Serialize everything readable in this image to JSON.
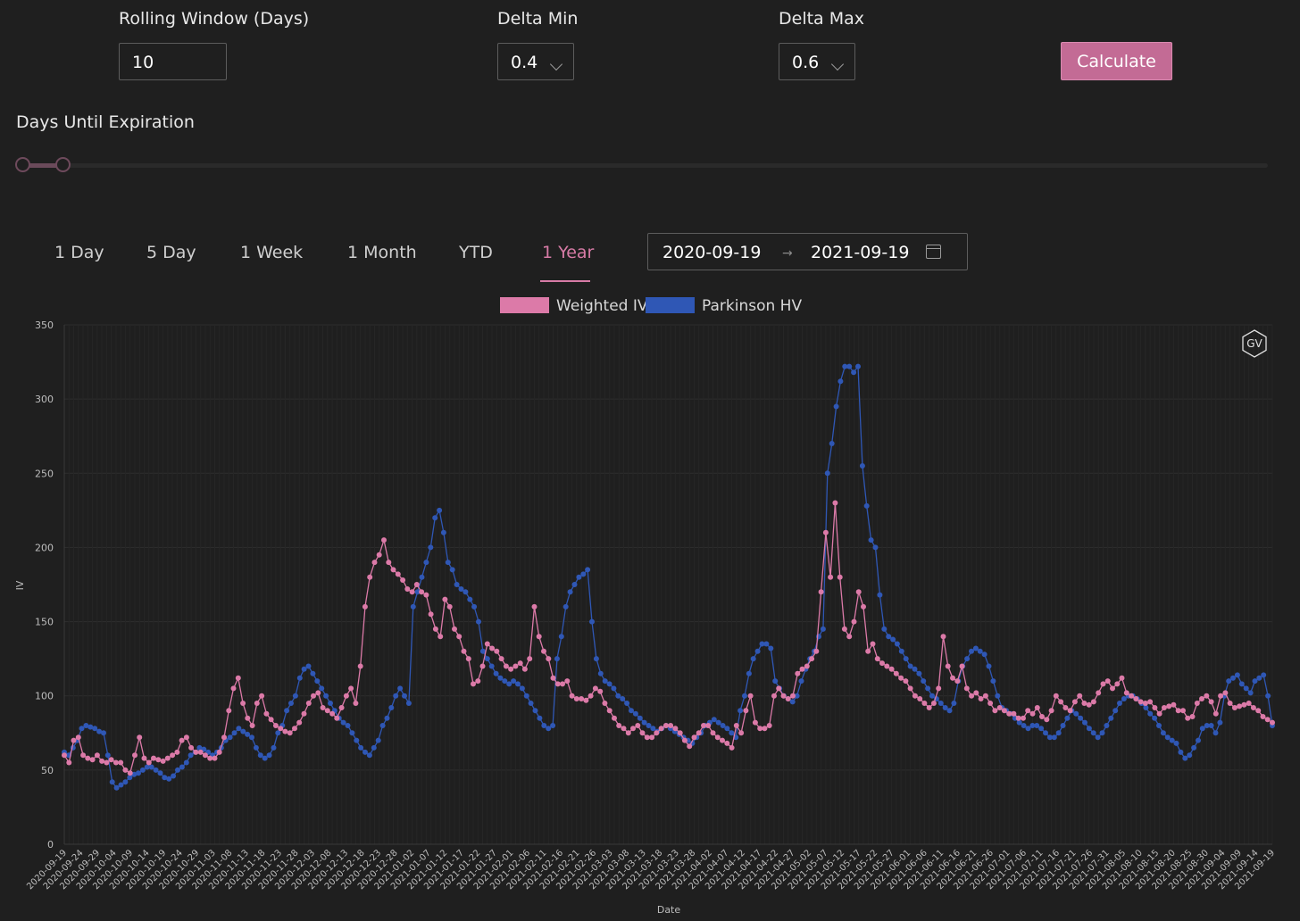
{
  "controls": {
    "rolling_label": "Rolling Window (Days)",
    "rolling_value": "10",
    "delta_min_label": "Delta Min",
    "delta_min_value": "0.4",
    "delta_max_label": "Delta Max",
    "delta_max_value": "0.6",
    "calculate_label": "Calculate",
    "dte_label": "Days Until Expiration"
  },
  "tabs": [
    {
      "label": "1 Day"
    },
    {
      "label": "5 Day"
    },
    {
      "label": "1 Week"
    },
    {
      "label": "1 Month"
    },
    {
      "label": "YTD"
    },
    {
      "label": "1 Year",
      "active": true
    }
  ],
  "date_range": {
    "start": "2020-09-19",
    "end": "2021-09-19",
    "separator": "→"
  },
  "logo_text": "GV",
  "colors": {
    "weighted_iv": "#dc7aa8",
    "parkinson_hv": "#2f57b5",
    "accent": "#c36b95"
  },
  "chart_data": {
    "type": "line",
    "title": "",
    "xlabel": "Date",
    "ylabel": "IV",
    "ylim": [
      0,
      350
    ],
    "yticks": [
      0,
      50,
      100,
      150,
      200,
      250,
      300,
      350
    ],
    "legend": "top-center",
    "grid": true,
    "x_tick_labels": [
      "2020-09-19",
      "2020-09-24",
      "2020-09-29",
      "2020-10-04",
      "2020-10-09",
      "2020-10-14",
      "2020-10-19",
      "2020-10-24",
      "2020-10-29",
      "2020-11-03",
      "2020-11-08",
      "2020-11-13",
      "2020-11-18",
      "2020-11-23",
      "2020-11-28",
      "2020-12-03",
      "2020-12-08",
      "2020-12-13",
      "2020-12-18",
      "2020-12-23",
      "2020-12-28",
      "2021-01-02",
      "2021-01-07",
      "2021-01-12",
      "2021-01-17",
      "2021-01-22",
      "2021-01-27",
      "2021-02-01",
      "2021-02-06",
      "2021-02-11",
      "2021-02-16",
      "2021-02-21",
      "2021-02-26",
      "2021-03-03",
      "2021-03-08",
      "2021-03-13",
      "2021-03-18",
      "2021-03-23",
      "2021-03-28",
      "2021-04-02",
      "2021-04-07",
      "2021-04-12",
      "2021-04-17",
      "2021-04-22",
      "2021-04-27",
      "2021-05-02",
      "2021-05-07",
      "2021-05-12",
      "2021-05-17",
      "2021-05-22",
      "2021-05-27",
      "2021-06-01",
      "2021-06-06",
      "2021-06-11",
      "2021-06-16",
      "2021-06-21",
      "2021-06-26",
      "2021-07-01",
      "2021-07-06",
      "2021-07-11",
      "2021-07-16",
      "2021-07-21",
      "2021-07-26",
      "2021-07-31",
      "2021-08-05",
      "2021-08-10",
      "2021-08-15",
      "2021-08-20",
      "2021-08-25",
      "2021-08-30",
      "2021-09-04",
      "2021-09-09",
      "2021-09-14",
      "2021-09-19"
    ],
    "series": [
      {
        "name": "Weighted IV",
        "color": "#dc7aa8",
        "values": [
          60,
          55,
          70,
          72,
          60,
          58,
          57,
          60,
          56,
          55,
          57,
          55,
          55,
          50,
          48,
          60,
          72,
          58,
          55,
          58,
          57,
          56,
          58,
          60,
          62,
          70,
          72,
          65,
          62,
          62,
          60,
          58,
          58,
          62,
          72,
          90,
          105,
          112,
          95,
          85,
          80,
          95,
          100,
          88,
          84,
          80,
          78,
          76,
          75,
          78,
          82,
          88,
          95,
          100,
          102,
          92,
          90,
          88,
          85,
          92,
          100,
          105,
          95,
          120,
          160,
          180,
          190,
          195,
          205,
          190,
          185,
          182,
          178,
          172,
          170,
          175,
          170,
          168,
          155,
          145,
          140,
          165,
          160,
          145,
          140,
          130,
          125,
          108,
          110,
          120,
          135,
          132,
          130,
          125,
          120,
          118,
          120,
          122,
          118,
          125,
          160,
          140,
          130,
          125,
          112,
          108,
          108,
          110,
          100,
          98,
          98,
          97,
          100,
          105,
          103,
          95,
          90,
          85,
          80,
          78,
          75,
          78,
          80,
          75,
          72,
          72,
          75,
          78,
          80,
          80,
          78,
          75,
          70,
          66,
          72,
          75,
          80,
          80,
          75,
          72,
          70,
          68,
          65,
          80,
          75,
          90,
          100,
          82,
          78,
          78,
          80,
          100,
          105,
          100,
          98,
          100,
          115,
          118,
          120,
          125,
          130,
          170,
          210,
          180,
          230,
          180,
          145,
          140,
          150,
          170,
          160,
          130,
          135,
          125,
          122,
          120,
          118,
          115,
          112,
          110,
          105,
          100,
          98,
          95,
          92,
          95,
          105,
          140,
          120,
          112,
          110,
          120,
          105,
          100,
          102,
          98,
          100,
          95,
          90,
          92,
          90,
          88,
          88,
          85,
          85,
          90,
          88,
          92,
          86,
          84,
          90,
          100,
          96,
          92,
          90,
          96,
          100,
          95,
          94,
          96,
          102,
          108,
          110,
          105,
          108,
          112,
          102,
          100,
          98,
          96,
          95,
          96,
          92,
          88,
          92,
          93,
          94,
          90,
          90,
          85,
          86,
          95,
          98,
          100,
          96,
          88,
          100,
          102,
          95,
          92,
          93,
          94,
          95,
          92,
          90,
          86,
          84,
          82
        ]
      },
      {
        "name": "Parkinson HV",
        "color": "#2f57b5",
        "values": [
          62,
          60,
          65,
          70,
          78,
          80,
          79,
          78,
          76,
          75,
          60,
          42,
          38,
          40,
          42,
          45,
          47,
          48,
          50,
          52,
          52,
          50,
          48,
          45,
          44,
          46,
          50,
          52,
          55,
          60,
          62,
          65,
          64,
          62,
          60,
          62,
          65,
          70,
          72,
          75,
          78,
          76,
          74,
          72,
          65,
          60,
          58,
          60,
          65,
          75,
          80,
          90,
          95,
          100,
          112,
          118,
          120,
          115,
          110,
          105,
          100,
          95,
          90,
          85,
          82,
          80,
          75,
          70,
          65,
          62,
          60,
          65,
          70,
          80,
          85,
          92,
          100,
          105,
          100,
          95,
          160,
          170,
          180,
          190,
          200,
          220,
          225,
          210,
          190,
          185,
          175,
          172,
          170,
          165,
          160,
          150,
          130,
          125,
          120,
          115,
          112,
          110,
          108,
          110,
          108,
          105,
          100,
          95,
          90,
          85,
          80,
          78,
          80,
          125,
          140,
          160,
          170,
          175,
          180,
          182,
          185,
          150,
          125,
          115,
          110,
          108,
          105,
          100,
          98,
          95,
          90,
          88,
          85,
          82,
          80,
          78,
          76,
          78,
          80,
          78,
          76,
          74,
          72,
          70,
          68,
          72,
          75,
          80,
          82,
          84,
          82,
          80,
          78,
          75,
          72,
          90,
          100,
          115,
          125,
          130,
          135,
          135,
          132,
          110,
          105,
          100,
          98,
          96,
          100,
          110,
          118,
          125,
          130,
          140,
          145,
          250,
          270,
          295,
          312,
          322,
          322,
          318,
          322,
          255,
          228,
          205,
          200,
          168,
          145,
          140,
          138,
          135,
          130,
          125,
          120,
          118,
          115,
          110,
          105,
          100,
          98,
          95,
          92,
          90,
          95,
          110,
          120,
          125,
          130,
          132,
          130,
          128,
          120,
          110,
          100,
          92,
          90,
          88,
          85,
          82,
          80,
          78,
          80,
          80,
          78,
          75,
          72,
          72,
          75,
          80,
          85,
          90,
          88,
          85,
          82,
          78,
          75,
          72,
          75,
          80,
          85,
          90,
          95,
          98,
          100,
          100,
          98,
          95,
          92,
          88,
          85,
          80,
          75,
          72,
          70,
          68,
          62,
          58,
          60,
          65,
          70,
          78,
          80,
          80,
          75,
          82,
          100,
          110,
          112,
          114,
          108,
          105,
          102,
          110,
          112,
          114,
          100,
          80
        ]
      }
    ]
  }
}
